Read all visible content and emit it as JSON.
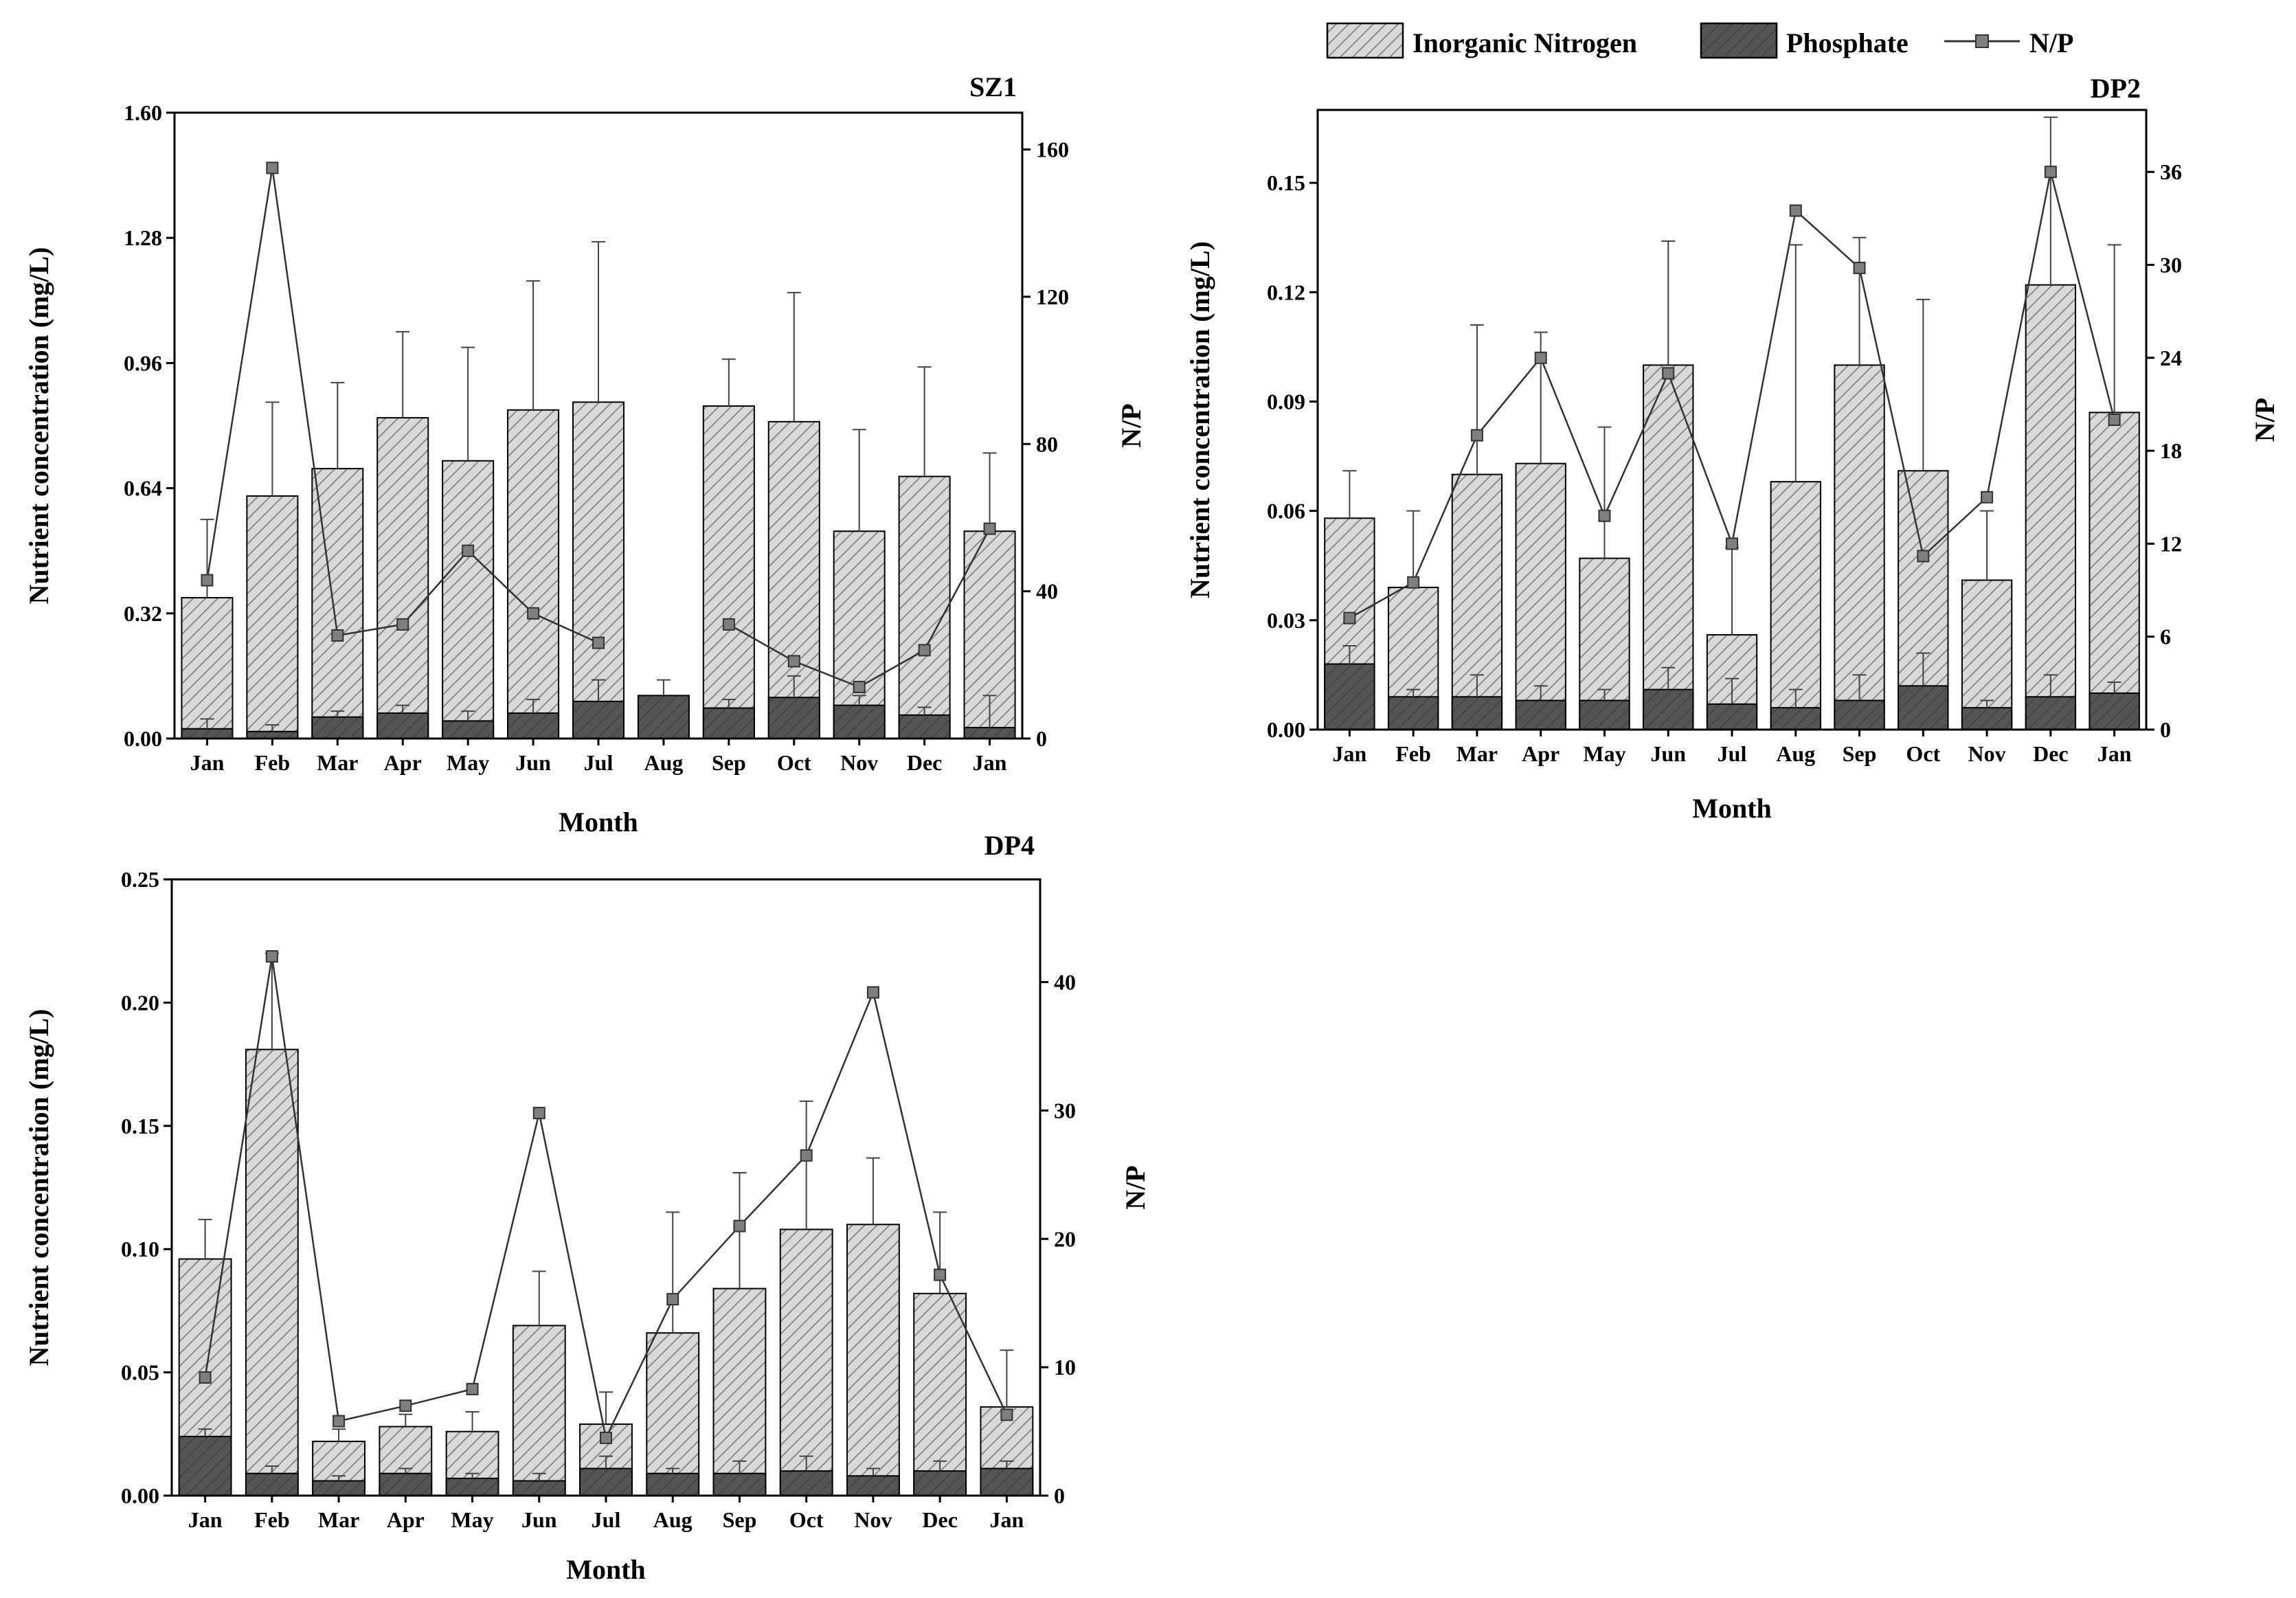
{
  "legend": {
    "nitrogen": "Inorganic Nitrogen",
    "phosphate": "Phosphate",
    "np": "N/P"
  },
  "colors": {
    "nitrogen_fill": "#d9d9d9",
    "hatch": "#8a8a8a",
    "phosphate_fill": "#555555",
    "np_line": "#333333",
    "np_marker": "#7f7f7f"
  },
  "chart_data": [
    {
      "type": "bar",
      "title": "SZ1",
      "xlabel": "Month",
      "ylabel": "Nutrient concentration (mg/L)",
      "y2label": "N/P",
      "categories": [
        "Jan",
        "Feb",
        "Mar",
        "Apr",
        "May",
        "Jun",
        "Jul",
        "Aug",
        "Sep",
        "Oct",
        "Nov",
        "Dec",
        "Jan"
      ],
      "ylim": [
        0,
        1.6
      ],
      "yticks": [
        "0.00",
        "0.32",
        "0.64",
        "0.96",
        "1.28",
        "1.60"
      ],
      "y2lim": [
        0,
        170
      ],
      "y2ticks": [
        "0",
        "40",
        "80",
        "120",
        "160"
      ],
      "series": [
        {
          "name": "Inorganic Nitrogen",
          "values": [
            0.36,
            0.62,
            0.69,
            0.82,
            0.71,
            0.84,
            0.86,
            null,
            0.85,
            0.81,
            0.53,
            0.67,
            0.53
          ],
          "errors": [
            0.56,
            0.86,
            0.91,
            1.04,
            1.0,
            1.17,
            1.27,
            null,
            0.97,
            1.14,
            0.79,
            0.95,
            0.73
          ]
        },
        {
          "name": "Phosphate",
          "values": [
            0.025,
            0.018,
            0.055,
            0.065,
            0.045,
            0.065,
            0.095,
            0.11,
            0.078,
            0.105,
            0.085,
            0.06,
            0.028
          ],
          "errors": [
            0.05,
            0.035,
            0.07,
            0.085,
            0.07,
            0.1,
            0.15,
            0.15,
            0.1,
            0.16,
            0.11,
            0.08,
            0.11
          ]
        },
        {
          "name": "N/P",
          "axis": "right",
          "values": [
            43,
            155,
            28,
            31,
            51,
            34,
            26,
            null,
            31,
            21,
            14,
            24,
            57
          ]
        }
      ]
    },
    {
      "type": "bar",
      "title": "DP2",
      "xlabel": "Month",
      "ylabel": "Nutrient concentration (mg/L)",
      "y2label": "N/P",
      "categories": [
        "Jan",
        "Feb",
        "Mar",
        "Apr",
        "May",
        "Jun",
        "Jul",
        "Aug",
        "Sep",
        "Oct",
        "Nov",
        "Dec",
        "Jan"
      ],
      "ylim": [
        0,
        0.17
      ],
      "yticks": [
        "0.00",
        "0.03",
        "0.06",
        "0.09",
        "0.12",
        "0.15"
      ],
      "y2lim": [
        0,
        40
      ],
      "y2ticks": [
        "0",
        "6",
        "12",
        "18",
        "24",
        "30",
        "36"
      ],
      "series": [
        {
          "name": "Inorganic Nitrogen",
          "values": [
            0.058,
            0.039,
            0.07,
            0.073,
            0.047,
            0.1,
            0.026,
            0.068,
            0.1,
            0.071,
            0.041,
            0.122,
            0.087
          ],
          "errors": [
            0.071,
            0.06,
            0.111,
            0.109,
            0.083,
            0.134,
            0.05,
            0.133,
            0.135,
            0.118,
            0.06,
            0.168,
            0.133
          ]
        },
        {
          "name": "Phosphate",
          "values": [
            0.018,
            0.009,
            0.009,
            0.008,
            0.008,
            0.011,
            0.007,
            0.006,
            0.008,
            0.012,
            0.006,
            0.009,
            0.01
          ],
          "errors": [
            0.023,
            0.011,
            0.015,
            0.012,
            0.011,
            0.017,
            0.014,
            0.011,
            0.015,
            0.021,
            0.008,
            0.015,
            0.013
          ]
        },
        {
          "name": "N/P",
          "axis": "right",
          "values": [
            7.2,
            9.5,
            19,
            24,
            13.8,
            23,
            12,
            33.5,
            29.8,
            11.2,
            15,
            36,
            20
          ]
        }
      ]
    },
    {
      "type": "bar",
      "title": "DP4",
      "xlabel": "Month",
      "ylabel": "Nutrient concentration (mg/L)",
      "y2label": "N/P",
      "categories": [
        "Jan",
        "Feb",
        "Mar",
        "Apr",
        "May",
        "Jun",
        "Jul",
        "Aug",
        "Sep",
        "Oct",
        "Nov",
        "Dec",
        "Jan"
      ],
      "ylim": [
        0,
        0.25
      ],
      "yticks": [
        "0.00",
        "0.05",
        "0.10",
        "0.15",
        "0.20",
        "0.25"
      ],
      "y2lim": [
        0,
        48
      ],
      "y2ticks": [
        "0",
        "10",
        "20",
        "30",
        "40"
      ],
      "series": [
        {
          "name": "Inorganic Nitrogen",
          "values": [
            0.096,
            0.181,
            0.022,
            0.028,
            0.026,
            0.069,
            0.029,
            0.066,
            0.084,
            0.108,
            0.11,
            0.082,
            0.036
          ],
          "errors": [
            0.112,
            0.22,
            0.027,
            0.033,
            0.034,
            0.091,
            0.042,
            0.115,
            0.131,
            0.16,
            0.137,
            0.115,
            0.059
          ]
        },
        {
          "name": "Phosphate",
          "values": [
            0.024,
            0.009,
            0.006,
            0.009,
            0.007,
            0.006,
            0.011,
            0.009,
            0.009,
            0.01,
            0.008,
            0.01,
            0.011
          ],
          "errors": [
            0.027,
            0.012,
            0.008,
            0.011,
            0.009,
            0.009,
            0.016,
            0.011,
            0.014,
            0.016,
            0.011,
            0.014,
            0.014
          ]
        },
        {
          "name": "N/P",
          "axis": "right",
          "values": [
            9.2,
            42,
            5.8,
            7,
            8.3,
            29.8,
            4.5,
            15.3,
            21,
            26.5,
            39.2,
            17.2,
            6.3
          ]
        }
      ]
    }
  ]
}
